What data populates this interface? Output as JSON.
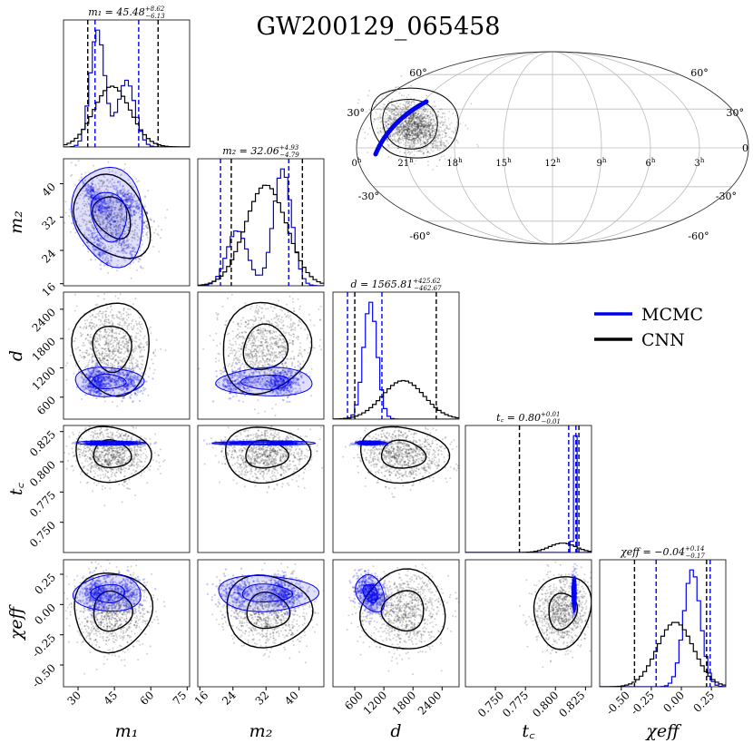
{
  "chart_data": {
    "type": "corner",
    "title": "GW200129_065458",
    "legend": {
      "placement": "right",
      "entries": [
        {
          "name": "MCMC",
          "color": "#0000ee"
        },
        {
          "name": "CNN",
          "color": "#000000"
        }
      ]
    },
    "parameters": [
      {
        "key": "m1",
        "label": "m₁",
        "range": [
          24,
          76
        ],
        "ticks": [
          "30",
          "45",
          "60",
          "75"
        ],
        "tick_values": [
          30,
          45,
          60,
          75
        ],
        "title": {
          "name": "m₁",
          "median": "45.48",
          "plus": "+8.62",
          "minus": "−6.13"
        }
      },
      {
        "key": "m2",
        "label": "m₂",
        "range": [
          15.5,
          46
        ],
        "ticks": [
          "16",
          "24",
          "32",
          "40"
        ],
        "tick_values": [
          16,
          24,
          32,
          40
        ],
        "title": {
          "name": "m₂",
          "median": "32.06",
          "plus": "+4.93",
          "minus": "−4.79"
        }
      },
      {
        "key": "d",
        "label": "d",
        "range": [
          150,
          2750
        ],
        "ticks": [
          "600",
          "1200",
          "1800",
          "2400"
        ],
        "tick_values": [
          600,
          1200,
          1800,
          2400
        ],
        "title": {
          "name": "d",
          "median": "1565.81",
          "plus": "+425.62",
          "minus": "−462.67"
        }
      },
      {
        "key": "tc",
        "label": "t꜀",
        "range": [
          0.725,
          0.83
        ],
        "ticks": [
          "0.750",
          "0.775",
          "0.800",
          "0.825"
        ],
        "tick_values": [
          0.75,
          0.775,
          0.8,
          0.825
        ],
        "title": {
          "name": "t꜀",
          "median": "0.80",
          "plus": "+0.01",
          "minus": "−0.01"
        }
      },
      {
        "key": "chi",
        "label": "χeff",
        "range": [
          -0.68,
          0.37
        ],
        "ticks": [
          "-0.50",
          "-0.25",
          "0.00",
          "0.25"
        ],
        "tick_values": [
          -0.5,
          -0.25,
          0,
          0.25
        ],
        "title": {
          "name": "χeff",
          "median": "−0.04",
          "plus": "+0.14",
          "minus": "−0.17"
        }
      }
    ],
    "series": [
      {
        "name": "MCMC",
        "color": "#0000ee",
        "marginals": {
          "m1": {
            "components": [
              [
                38,
                3,
                0.6
              ],
              [
                50,
                3.5,
                0.4
              ]
            ],
            "interval": [
              37,
              55
            ]
          },
          "m2": {
            "components": [
              [
                25,
                2.5,
                0.35
              ],
              [
                36,
                2.2,
                0.65
              ]
            ],
            "interval": [
              21,
              37.5
            ]
          },
          "d": {
            "components": [
              [
                920,
                140,
                1
              ]
            ],
            "interval": [
              450,
              1160
            ]
          },
          "tc": {
            "components": [
              [
                0.8155,
                0.0008,
                1
              ]
            ],
            "interval": [
              0.811,
              0.817
            ]
          },
          "chi": {
            "components": [
              [
                0.09,
                0.07,
                1
              ]
            ],
            "interval": [
              -0.21,
              0.24
            ]
          }
        },
        "correlations": {
          "m1|m2": -0.75,
          "d|chi": -0.3
        }
      },
      {
        "name": "CNN",
        "color": "#000000",
        "marginals": {
          "m1": {
            "components": [
              [
                44,
                7.5,
                1
              ]
            ],
            "interval": [
              34,
              63
            ]
          },
          "m2": {
            "components": [
              [
                32,
                5,
                1
              ]
            ],
            "interval": [
              23.6,
              40.8
            ]
          },
          "d": {
            "components": [
              [
                1600,
                430,
                1
              ]
            ],
            "interval": [
              600,
              2280
            ]
          },
          "tc": {
            "components": [
              [
                0.806,
                0.011,
                1
              ]
            ],
            "interval": [
              0.77,
              0.8195
            ]
          },
          "chi": {
            "components": [
              [
                -0.05,
                0.15,
                1
              ]
            ],
            "interval": [
              -0.39,
              0.21
            ]
          }
        },
        "correlations": {
          "m1|m2": -0.3
        }
      }
    ],
    "sky_map": {
      "projection": "mollweide",
      "lat_labels": [
        "60°",
        "30°",
        "0",
        "-30°",
        "-60°"
      ],
      "ra_labels": [
        "0h",
        "21h",
        "18h",
        "15h",
        "12h",
        "9h",
        "6h",
        "3h"
      ]
    }
  }
}
